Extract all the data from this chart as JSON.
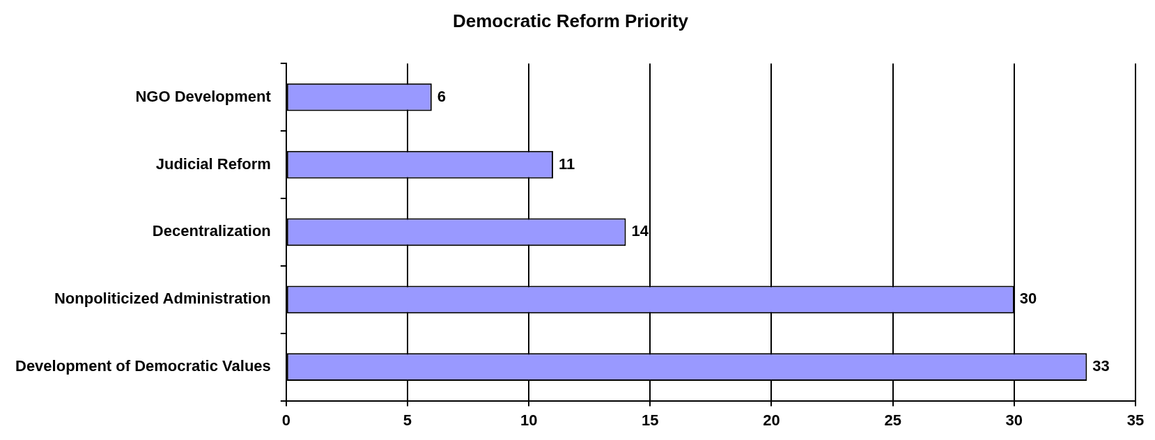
{
  "chart_data": {
    "type": "bar",
    "orientation": "horizontal",
    "title": "Democratic Reform Priority",
    "categories": [
      "NGO Development",
      "Judicial Reform",
      "Decentralization",
      "Nonpoliticized Administration",
      "Development of Democratic Values"
    ],
    "values": [
      6,
      11,
      14,
      30,
      33
    ],
    "color": "#9999ff",
    "xlim": [
      0,
      35
    ],
    "xticks": [
      0,
      5,
      10,
      15,
      20,
      25,
      30,
      35
    ],
    "grid": "x",
    "legend": false,
    "data_labels": true
  }
}
